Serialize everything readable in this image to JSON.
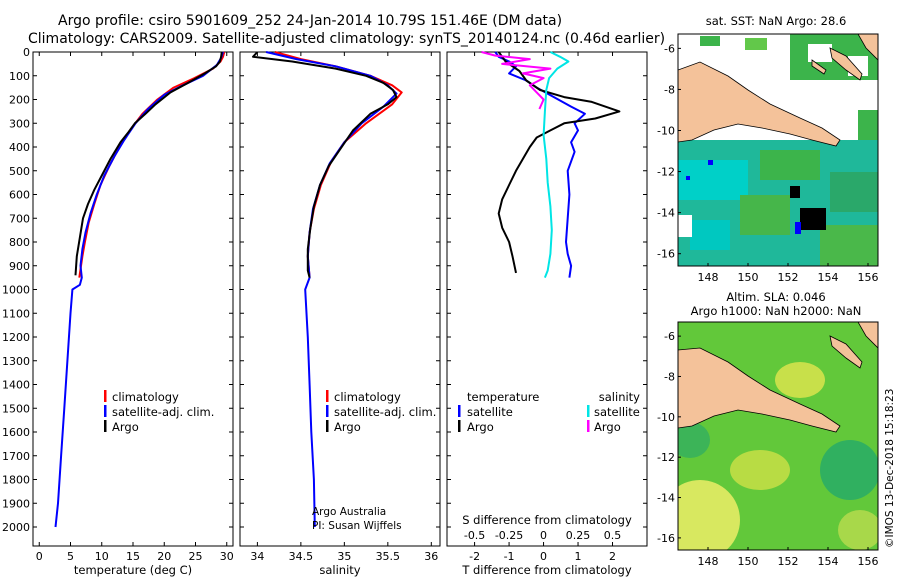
{
  "title": {
    "line1": "Argo profile: csiro 5901609_252 24-Jan-2014 10.79S 151.46E (DM data)",
    "line2": "Climatology: CARS2009. Satellite-adjusted climatology: synTS_20140124.nc (0.46d earlier)"
  },
  "colors": {
    "climatology": "#ff0000",
    "satellite": "#0000ff",
    "argo": "#000000",
    "argo_salinity_diff": "#ff00ff",
    "satellite_salinity_diff": "#00e5e5",
    "land": "#f4c29a"
  },
  "chart_data": [
    {
      "type": "line",
      "id": "temperature",
      "xlabel": "temperature (deg C)",
      "ylabel": "",
      "xlim": [
        -1,
        31
      ],
      "ylim": [
        2080,
        0
      ],
      "xticks": [
        0,
        5,
        10,
        15,
        20,
        25,
        30
      ],
      "yticks": [
        0,
        100,
        200,
        300,
        400,
        500,
        600,
        700,
        800,
        900,
        1000,
        1100,
        1200,
        1300,
        1400,
        1500,
        1600,
        1700,
        1800,
        1900,
        2000
      ],
      "legend_position": "lower-middle",
      "legend": [
        "climatology",
        "satellite-adj. clim.",
        "Argo"
      ],
      "series": [
        {
          "name": "climatology",
          "color_key": "climatology",
          "points": [
            [
              29.6,
              0
            ],
            [
              29.4,
              20
            ],
            [
              29.0,
              40
            ],
            [
              27.8,
              70
            ],
            [
              24.8,
              110
            ],
            [
              21.5,
              150
            ],
            [
              18.9,
              200
            ],
            [
              16.5,
              260
            ],
            [
              14.5,
              330
            ],
            [
              12.8,
              400
            ],
            [
              11.2,
              480
            ],
            [
              9.8,
              560
            ],
            [
              8.8,
              640
            ],
            [
              7.9,
              720
            ],
            [
              7.3,
              800
            ],
            [
              6.9,
              860
            ],
            [
              6.4,
              950
            ]
          ]
        },
        {
          "name": "satellite-adj. clim.",
          "color_key": "satellite",
          "points": [
            [
              29.4,
              0
            ],
            [
              29.1,
              25
            ],
            [
              28.4,
              55
            ],
            [
              26.2,
              100
            ],
            [
              23.0,
              140
            ],
            [
              20.0,
              180
            ],
            [
              17.4,
              240
            ],
            [
              15.4,
              300
            ],
            [
              13.6,
              370
            ],
            [
              12.0,
              440
            ],
            [
              10.4,
              520
            ],
            [
              9.2,
              600
            ],
            [
              8.2,
              680
            ],
            [
              7.4,
              760
            ],
            [
              6.9,
              830
            ],
            [
              6.6,
              900
            ],
            [
              6.8,
              950
            ],
            [
              6.5,
              980
            ],
            [
              5.3,
              1000
            ],
            [
              5.0,
              1100
            ],
            [
              4.5,
              1300
            ],
            [
              4.0,
              1500
            ],
            [
              3.5,
              1700
            ],
            [
              3.0,
              1900
            ],
            [
              2.6,
              2000
            ]
          ]
        },
        {
          "name": "Argo",
          "color_key": "argo",
          "points": [
            [
              29.2,
              0
            ],
            [
              29.1,
              20
            ],
            [
              28.9,
              40
            ],
            [
              28.3,
              60
            ],
            [
              26.5,
              90
            ],
            [
              23.8,
              130
            ],
            [
              21.0,
              170
            ],
            [
              18.6,
              220
            ],
            [
              17.0,
              260
            ],
            [
              15.3,
              300
            ],
            [
              14.2,
              340
            ],
            [
              13.0,
              380
            ],
            [
              11.4,
              450
            ],
            [
              10.0,
              520
            ],
            [
              8.8,
              580
            ],
            [
              7.8,
              640
            ],
            [
              7.0,
              700
            ],
            [
              6.5,
              780
            ],
            [
              6.0,
              860
            ],
            [
              5.8,
              940
            ]
          ]
        }
      ]
    },
    {
      "type": "line",
      "id": "salinity",
      "xlabel": "salinity",
      "ylabel": "",
      "xlim": [
        33.8,
        36.1
      ],
      "ylim": [
        2080,
        0
      ],
      "xticks": [
        34,
        34.5,
        35,
        35.5,
        36
      ],
      "yticks": [
        0,
        100,
        200,
        300,
        400,
        500,
        600,
        700,
        800,
        900,
        1000,
        1100,
        1200,
        1300,
        1400,
        1500,
        1600,
        1700,
        1800,
        1900,
        2000
      ],
      "legend_position": "lower-middle",
      "legend": [
        "climatology",
        "satellite-adj. clim.",
        "Argo"
      ],
      "annotation": [
        "Argo Australia",
        "PI: Susan Wijffels"
      ],
      "series": [
        {
          "name": "climatology",
          "color_key": "climatology",
          "points": [
            [
              34.2,
              0
            ],
            [
              34.5,
              30
            ],
            [
              34.9,
              60
            ],
            [
              35.3,
              100
            ],
            [
              35.55,
              140
            ],
            [
              35.66,
              170
            ],
            [
              35.55,
              220
            ],
            [
              35.25,
              300
            ],
            [
              35.0,
              380
            ],
            [
              34.85,
              460
            ],
            [
              34.73,
              560
            ],
            [
              34.65,
              660
            ],
            [
              34.6,
              760
            ],
            [
              34.58,
              860
            ],
            [
              34.6,
              950
            ]
          ]
        },
        {
          "name": "satellite-adj. clim.",
          "color_key": "satellite",
          "points": [
            [
              34.1,
              0
            ],
            [
              34.45,
              30
            ],
            [
              34.9,
              60
            ],
            [
              35.3,
              100
            ],
            [
              35.5,
              140
            ],
            [
              35.6,
              175
            ],
            [
              35.45,
              230
            ],
            [
              35.2,
              300
            ],
            [
              35.0,
              380
            ],
            [
              34.83,
              470
            ],
            [
              34.72,
              560
            ],
            [
              34.64,
              660
            ],
            [
              34.6,
              760
            ],
            [
              34.58,
              860
            ],
            [
              34.6,
              950
            ],
            [
              34.55,
              1000
            ],
            [
              34.58,
              1200
            ],
            [
              34.6,
              1400
            ],
            [
              34.62,
              1600
            ],
            [
              34.65,
              1800
            ],
            [
              34.66,
              2000
            ]
          ]
        },
        {
          "name": "Argo",
          "color_key": "argo",
          "points": [
            [
              34.0,
              0
            ],
            [
              33.95,
              20
            ],
            [
              34.4,
              40
            ],
            [
              34.9,
              70
            ],
            [
              35.25,
              100
            ],
            [
              35.45,
              130
            ],
            [
              35.56,
              160
            ],
            [
              35.6,
              190
            ],
            [
              35.5,
              220
            ],
            [
              35.3,
              260
            ],
            [
              35.1,
              330
            ],
            [
              34.95,
              410
            ],
            [
              34.82,
              480
            ],
            [
              34.72,
              560
            ],
            [
              34.65,
              650
            ],
            [
              34.61,
              740
            ],
            [
              34.58,
              830
            ],
            [
              34.58,
              920
            ],
            [
              34.6,
              950
            ]
          ]
        }
      ]
    },
    {
      "type": "line",
      "id": "differences",
      "xlabel": "T difference from climatology",
      "xlabel_top": "S difference from climatology",
      "ylabel": "",
      "xlim": [
        -2.8,
        3.0
      ],
      "ylim": [
        2080,
        0
      ],
      "xticks": [
        -2,
        -1,
        0,
        1,
        2
      ],
      "xticks_s_values": [
        -0.5,
        -0.25,
        0,
        0.25,
        0.5
      ],
      "xticks_s_labels": [
        "-0.5",
        "-0.25",
        "0",
        "0.25",
        "0.5"
      ],
      "yticks": [
        0,
        100,
        200,
        300,
        400,
        500,
        600,
        700,
        800,
        900,
        1000,
        1100,
        1200,
        1300,
        1400,
        1500,
        1600,
        1700,
        1800,
        1900,
        2000
      ],
      "legend_position": "lower-middle",
      "legend_temperature": {
        "header": "temperature",
        "items": [
          "satellite",
          "Argo"
        ]
      },
      "legend_salinity": {
        "header": "salinity",
        "items": [
          "satellite",
          "Argo"
        ]
      },
      "series": [
        {
          "name": "T satellite",
          "color_key": "satellite",
          "units": "T",
          "points": [
            [
              -1.4,
              0
            ],
            [
              -1.3,
              20
            ],
            [
              -1.0,
              40
            ],
            [
              -0.8,
              60
            ],
            [
              -1.0,
              90
            ],
            [
              -0.5,
              120
            ],
            [
              -0.2,
              150
            ],
            [
              0.3,
              190
            ],
            [
              0.8,
              230
            ],
            [
              1.2,
              260
            ],
            [
              0.9,
              300
            ],
            [
              1.0,
              330
            ],
            [
              0.8,
              380
            ],
            [
              0.9,
              420
            ],
            [
              0.7,
              500
            ],
            [
              0.75,
              600
            ],
            [
              0.7,
              700
            ],
            [
              0.65,
              800
            ],
            [
              0.7,
              850
            ],
            [
              0.8,
              900
            ],
            [
              0.75,
              950
            ]
          ]
        },
        {
          "name": "T Argo",
          "color_key": "argo",
          "units": "T",
          "points": [
            [
              -1.3,
              0
            ],
            [
              -1.1,
              40
            ],
            [
              -0.7,
              80
            ],
            [
              -0.5,
              120
            ],
            [
              -0.1,
              160
            ],
            [
              0.6,
              190
            ],
            [
              1.4,
              210
            ],
            [
              2.2,
              250
            ],
            [
              1.5,
              280
            ],
            [
              0.6,
              300
            ],
            [
              0.2,
              330
            ],
            [
              -0.2,
              360
            ],
            [
              -0.4,
              400
            ],
            [
              -0.6,
              450
            ],
            [
              -0.8,
              500
            ],
            [
              -1.0,
              560
            ],
            [
              -1.2,
              620
            ],
            [
              -1.3,
              680
            ],
            [
              -1.2,
              740
            ],
            [
              -1.0,
              800
            ],
            [
              -0.9,
              860
            ],
            [
              -0.8,
              930
            ]
          ]
        },
        {
          "name": "S satellite",
          "color_key": "satellite_salinity_diff",
          "units": "S",
          "points": [
            [
              0.05,
              0
            ],
            [
              0.12,
              20
            ],
            [
              0.18,
              40
            ],
            [
              0.1,
              70
            ],
            [
              0.04,
              110
            ],
            [
              0.02,
              160
            ],
            [
              0.01,
              250
            ],
            [
              0.0,
              350
            ],
            [
              0.02,
              450
            ],
            [
              0.03,
              550
            ],
            [
              0.05,
              650
            ],
            [
              0.06,
              750
            ],
            [
              0.05,
              850
            ],
            [
              0.03,
              920
            ],
            [
              0.01,
              950
            ]
          ]
        },
        {
          "name": "S Argo",
          "color_key": "argo_salinity_diff",
          "units": "S",
          "points": [
            [
              -0.45,
              0
            ],
            [
              -0.35,
              15
            ],
            [
              -0.1,
              30
            ],
            [
              -0.3,
              50
            ],
            [
              0.05,
              70
            ],
            [
              -0.15,
              90
            ],
            [
              0.0,
              110
            ],
            [
              -0.1,
              140
            ],
            [
              -0.05,
              170
            ],
            [
              0.0,
              200
            ],
            [
              -0.03,
              240
            ]
          ]
        }
      ]
    },
    {
      "type": "heatmap",
      "id": "sst_map",
      "title": "sat. SST: NaN Argo: 28.6",
      "xlim": [
        146.5,
        156.5
      ],
      "ylim": [
        -16.6,
        -5.3
      ],
      "xticks": [
        148,
        150,
        152,
        154,
        156
      ],
      "yticks": [
        -6,
        -8,
        -10,
        -12,
        -14,
        -16
      ]
    },
    {
      "type": "heatmap",
      "id": "sla_map",
      "title_line1": "Altim. SLA: 0.046",
      "title_line2": "Argo h1000: NaN h2000: NaN",
      "xlim": [
        146.5,
        156.5
      ],
      "ylim": [
        -16.6,
        -5.3
      ],
      "xticks": [
        148,
        150,
        152,
        154,
        156
      ],
      "yticks": [
        -6,
        -8,
        -10,
        -12,
        -14,
        -16
      ]
    }
  ],
  "credit": "©IMOS 13-Dec-2018 15:18:23"
}
